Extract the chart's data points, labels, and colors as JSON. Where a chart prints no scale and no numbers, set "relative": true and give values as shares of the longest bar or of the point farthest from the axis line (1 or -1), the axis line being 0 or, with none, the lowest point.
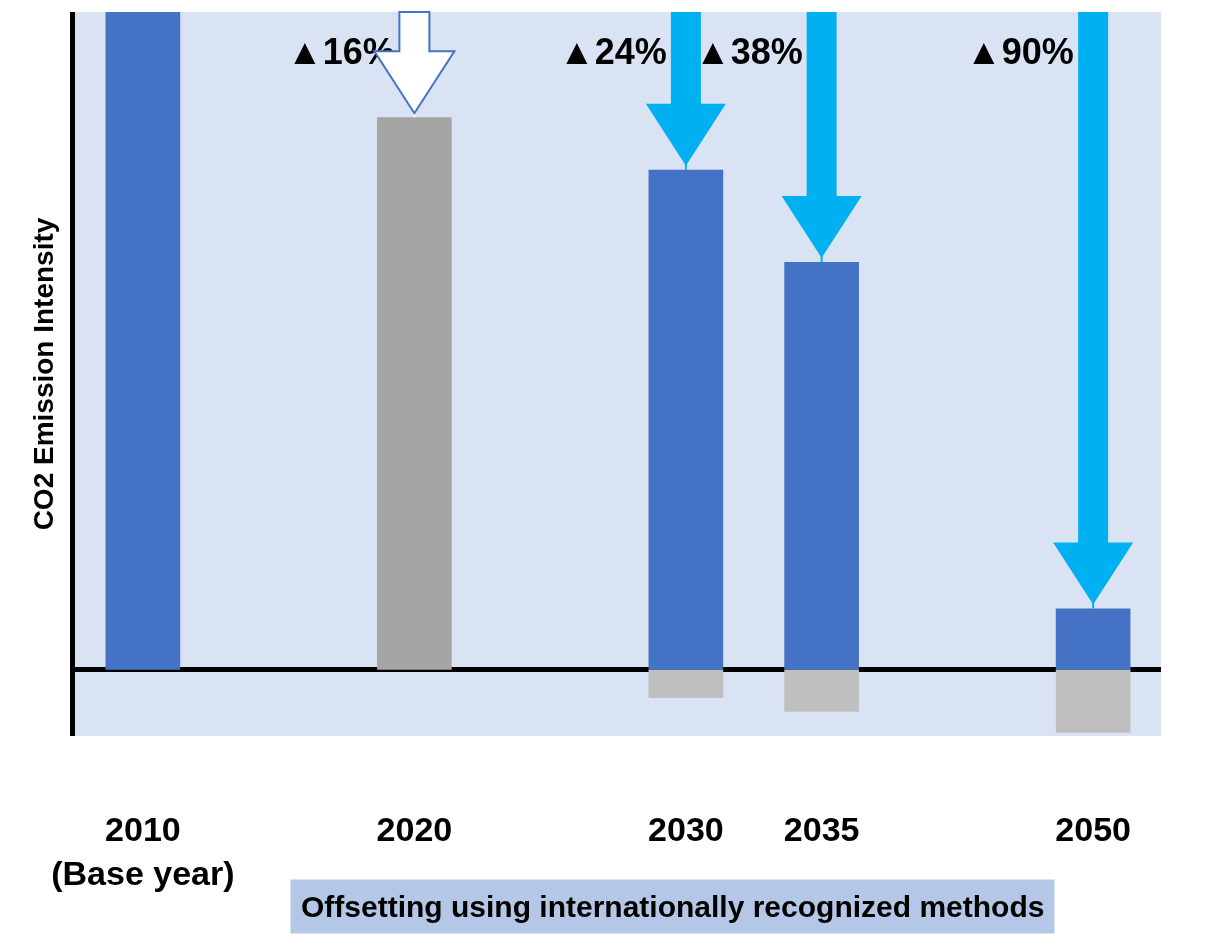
{
  "chart_data": {
    "type": "bar",
    "relative": true,
    "stacked": true,
    "ylabel": "CO2 Emission Intensity",
    "categories": [
      "2010\n(Base year)",
      null,
      "2020",
      null,
      "2030",
      "2035",
      null,
      "2050"
    ],
    "series": [
      {
        "colors": [
          "#4472c4",
          "#4472c4",
          "#a5a5a5",
          "#4472c4",
          "#4472c4",
          "#4472c4",
          "#4472c4",
          "#4472c4"
        ],
        "values": [
          1,
          null,
          0.84,
          null,
          0.76,
          0.62,
          null,
          0.093
        ]
      },
      {
        "color": "#bfbfbf",
        "values": [
          null,
          null,
          null,
          null,
          -0.043,
          -0.064,
          null,
          -0.096
        ]
      }
    ],
    "annotations": [
      {
        "text": "▲16%",
        "x": "2020",
        "y": 0.84
      },
      {
        "text": "▲24%",
        "x": "2030",
        "y": 0.76
      },
      {
        "text": "▲38%",
        "x": "2035",
        "y": 0.62
      },
      {
        "text": "▲90%",
        "x": "2050",
        "y": 0.093
      },
      "Offsetting using internationally recognized methods"
    ],
    "grid": false
  }
}
